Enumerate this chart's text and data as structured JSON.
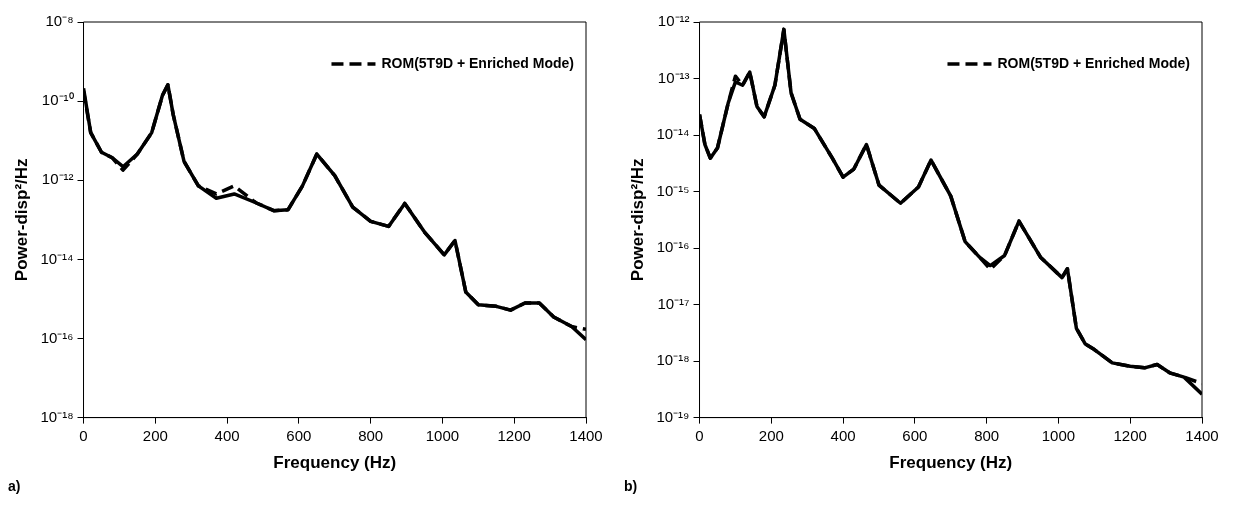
{
  "chart_data": [
    {
      "type": "line",
      "xlabel": "Frequency (Hz)",
      "ylabel": "Power-disp²/Hz",
      "log": "y",
      "grid": false,
      "legend": "top right",
      "marker": "none",
      "annotations": [
        "a)"
      ],
      "x": [
        0,
        20,
        50,
        80,
        110,
        150,
        190,
        220,
        235,
        250,
        280,
        320,
        370,
        420,
        480,
        530,
        570,
        610,
        650,
        700,
        750,
        800,
        850,
        895,
        950,
        1005,
        1035,
        1065,
        1100,
        1150,
        1190,
        1230,
        1270,
        1310,
        1360,
        1400
      ],
      "xlim": [
        0,
        1400
      ],
      "xticks": [
        0,
        200,
        400,
        600,
        800,
        1000,
        1200,
        1400
      ],
      "ylim": [
        1e-18,
        1e-08
      ],
      "yticks": [
        {
          "value": 1e-18,
          "label": "10⁻¹⁸"
        },
        {
          "value": 1e-16,
          "label": "10⁻¹⁶"
        },
        {
          "value": 1e-14,
          "label": "10⁻¹⁴"
        },
        {
          "value": 1e-12,
          "label": "10⁻¹²"
        },
        {
          "value": 1e-10,
          "label": "10⁻¹⁰"
        },
        {
          "value": 1e-08,
          "label": "10⁻⁸"
        }
      ],
      "series": [
        {
          "color": "#000000",
          "line_style": "solid",
          "values": [
            2.1e-10,
            1.6e-11,
            5.1e-12,
            3.7e-12,
            2.2e-12,
            4.6e-12,
            1.6e-11,
            1.4e-10,
            2.6e-10,
            4.5e-11,
            3e-12,
            7.2e-13,
            3.5e-13,
            4.5e-13,
            2.7e-13,
            1.7e-13,
            1.8e-13,
            7.2e-13,
            4.6e-12,
            1.3e-12,
            2.1e-13,
            9.1e-14,
            6.8e-14,
            2.6e-13,
            4.9e-14,
            1.3e-14,
            3e-14,
            1.5e-15,
            7.1e-16,
            6.5e-16,
            5.2e-16,
            7.9e-16,
            7.9e-16,
            3.5e-16,
            2e-16,
            9.3e-17
          ]
        },
        {
          "name": "ROM(5T9D + Enriched Mode)",
          "color": "#000000",
          "line_style": "dashed",
          "values": [
            1.8e-10,
            1.6e-11,
            5.1e-12,
            3.7e-12,
            1.8e-12,
            4.6e-12,
            1.6e-11,
            1.4e-10,
            2.6e-10,
            4.5e-11,
            3e-12,
            7.2e-13,
            4.5e-13,
            7.2e-13,
            2.7e-13,
            1.7e-13,
            1.8e-13,
            7.2e-13,
            4.6e-12,
            1.3e-12,
            2.1e-13,
            9.1e-14,
            6.8e-14,
            2.6e-13,
            4.9e-14,
            1.3e-14,
            3e-14,
            1.5e-15,
            7.1e-16,
            6.5e-16,
            5.2e-16,
            7.9e-16,
            7.9e-16,
            3.5e-16,
            2e-16,
            1.7e-16
          ]
        }
      ]
    },
    {
      "type": "line",
      "xlabel": "Frequency (Hz)",
      "ylabel": "Power-disp²/Hz",
      "log": "y",
      "grid": false,
      "legend": "top right",
      "marker": "none",
      "annotations": [
        "b)"
      ],
      "x": [
        0,
        15,
        30,
        50,
        80,
        100,
        120,
        140,
        160,
        180,
        210,
        235,
        255,
        280,
        320,
        370,
        400,
        430,
        465,
        500,
        560,
        610,
        645,
        700,
        740,
        780,
        810,
        850,
        890,
        950,
        1010,
        1025,
        1050,
        1075,
        1100,
        1150,
        1200,
        1240,
        1275,
        1310,
        1350,
        1400
      ],
      "xlim": [
        0,
        1400
      ],
      "xticks": [
        0,
        200,
        400,
        600,
        800,
        1000,
        1200,
        1400
      ],
      "ylim": [
        1e-19,
        1e-12
      ],
      "yticks": [
        {
          "value": 1e-19,
          "label": "10⁻¹⁹"
        },
        {
          "value": 1e-18,
          "label": "10⁻¹⁸"
        },
        {
          "value": 1e-17,
          "label": "10⁻¹⁷"
        },
        {
          "value": 1e-16,
          "label": "10⁻¹⁶"
        },
        {
          "value": 1e-15,
          "label": "10⁻¹⁵"
        },
        {
          "value": 1e-14,
          "label": "10⁻¹⁴"
        },
        {
          "value": 1e-13,
          "label": "10⁻¹³"
        },
        {
          "value": 1e-12,
          "label": "10⁻¹²"
        }
      ],
      "series": [
        {
          "color": "#000000",
          "line_style": "solid",
          "values": [
            2.3e-14,
            6.8e-15,
            3.9e-15,
            5.9e-15,
            3.7e-14,
            8.7e-14,
            7.6e-14,
            1.3e-13,
            3.2e-14,
            2.1e-14,
            7.6e-14,
            7.4e-13,
            5.6e-14,
            1.9e-14,
            1.3e-14,
            3.9e-15,
            1.8e-15,
            2.5e-15,
            6.8e-15,
            1.3e-15,
            6.2e-16,
            1.2e-15,
            3.6e-15,
            8.3e-16,
            1.3e-16,
            6.9e-17,
            4.9e-17,
            7.4e-17,
            3e-16,
            6.9e-17,
            3e-17,
            4.3e-17,
            3.8e-18,
            2e-18,
            1.6e-18,
            9.3e-19,
            8.1e-19,
            7.6e-19,
            8.7e-19,
            6.2e-19,
            5.2e-19,
            2.6e-19
          ]
        },
        {
          "name": "ROM(5T9D + Enriched Mode)",
          "color": "#000000",
          "line_style": "dashed",
          "values": [
            2.3e-14,
            6.8e-15,
            3.9e-15,
            5.9e-15,
            3.7e-14,
            1.1e-13,
            7.6e-14,
            1.3e-13,
            3.2e-14,
            2.1e-14,
            7.6e-14,
            7.4e-13,
            5.6e-14,
            1.9e-14,
            1.3e-14,
            3.9e-15,
            1.8e-15,
            2.5e-15,
            6.8e-15,
            1.3e-15,
            6.2e-16,
            1.2e-15,
            3.6e-15,
            8.3e-16,
            1.3e-16,
            6.9e-17,
            4.2e-17,
            7.4e-17,
            3e-16,
            6.9e-17,
            3e-17,
            4.3e-17,
            3.8e-18,
            2e-18,
            1.6e-18,
            9.3e-19,
            8.1e-19,
            7.6e-19,
            8.7e-19,
            6.2e-19,
            5.2e-19,
            4e-19
          ]
        }
      ]
    }
  ]
}
